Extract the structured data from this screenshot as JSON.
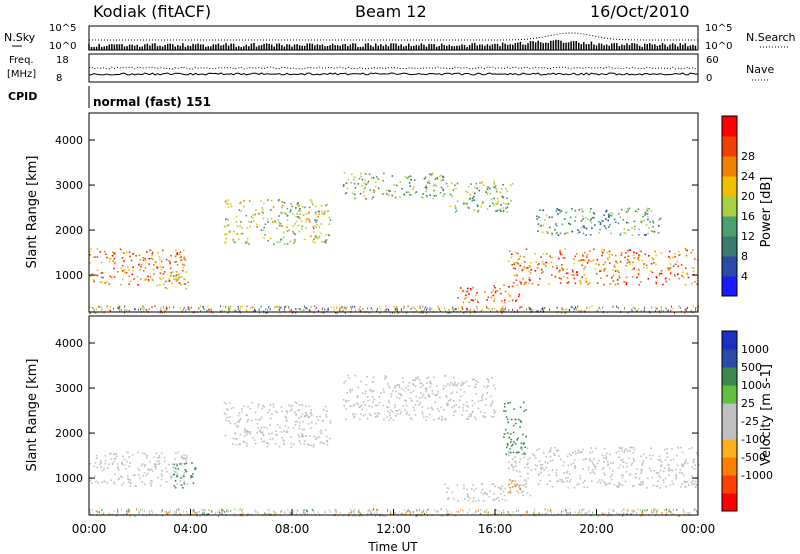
{
  "header": {
    "station": "Kodiak (fitACF)",
    "beam": "Beam 12",
    "date": "16/Oct/2010"
  },
  "noise_panel": {
    "left_label": "N.Sky",
    "right_label": "N.Search",
    "left_ticks": [
      "10^5",
      "10^0"
    ],
    "right_ticks": [
      "10^5",
      "10^0"
    ]
  },
  "freq_panel": {
    "left_label_line1": "Freq.",
    "left_label_line2": "[MHz]",
    "right_label": "Nave",
    "left_ticks": [
      "18",
      "8"
    ],
    "right_ticks": [
      "60",
      "0"
    ]
  },
  "cpid_panel": {
    "label": "CPID",
    "mode": "normal (fast) 151"
  },
  "colors": {
    "power_scale": [
      "#1a1aff",
      "#2a4aa8",
      "#3a7a70",
      "#4aa070",
      "#a8d040",
      "#f0c000",
      "#f08000",
      "#f04000",
      "#ff0000"
    ],
    "velocity_scale": [
      "#ff0000",
      "#ff4000",
      "#ff8000",
      "#ffb020",
      "#c0c0c0",
      "#c0c0c0",
      "#60c040",
      "#3a8a50",
      "#2a4aa8",
      "#1a30c0"
    ],
    "ground_scatter": "#c0c0c0"
  },
  "chart_data": [
    {
      "type": "heatmap",
      "name": "power",
      "ylabel": "Slant Range [km]",
      "yticks": [
        "1000",
        "2000",
        "3000",
        "4000"
      ],
      "ylim": [
        180,
        4600
      ],
      "xlim_hours": [
        0,
        24
      ],
      "colorbar_label": "Power [dB]",
      "colorbar_ticks": [
        "4",
        "8",
        "12",
        "16",
        "20",
        "24",
        "28"
      ],
      "colorbar_range": [
        0,
        32
      ],
      "regions": [
        {
          "t0": 0.0,
          "t1": 3.9,
          "r0": 800,
          "r1": 1600,
          "value": 26
        },
        {
          "t0": 2.5,
          "t1": 3.8,
          "r0": 700,
          "r1": 1100,
          "value": 22
        },
        {
          "t0": 5.3,
          "t1": 9.5,
          "r0": 1700,
          "r1": 2700,
          "value": 18
        },
        {
          "t0": 10.0,
          "t1": 14.0,
          "r0": 2700,
          "r1": 3300,
          "value": 14
        },
        {
          "t0": 14.0,
          "t1": 16.7,
          "r0": 2400,
          "r1": 3100,
          "value": 16
        },
        {
          "t0": 14.5,
          "t1": 17.0,
          "r0": 400,
          "r1": 800,
          "value": 28
        },
        {
          "t0": 16.5,
          "t1": 24.0,
          "r0": 800,
          "r1": 1600,
          "value": 26
        },
        {
          "t0": 17.5,
          "t1": 22.5,
          "r0": 1900,
          "r1": 2500,
          "value": 12
        }
      ]
    },
    {
      "type": "heatmap",
      "name": "velocity",
      "ylabel": "Slant Range [km]",
      "yticks": [
        "1000",
        "2000",
        "3000",
        "4000"
      ],
      "ylim": [
        180,
        4600
      ],
      "xlim_hours": [
        0,
        24
      ],
      "xticks": [
        "00:00",
        "04:00",
        "08:00",
        "12:00",
        "16:00",
        "20:00",
        "00:00"
      ],
      "xlabel": "Time UT",
      "colorbar_label": "Velocity [m s-1]",
      "colorbar_ticks": [
        "1000",
        "500",
        "100",
        "25",
        "-25",
        "-100",
        "-500",
        "-1000"
      ],
      "regions": [
        {
          "t0": 0.0,
          "t1": 3.9,
          "r0": 800,
          "r1": 1600,
          "value": "ground"
        },
        {
          "t0": 3.3,
          "t1": 4.2,
          "r0": 800,
          "r1": 1400,
          "value": 200
        },
        {
          "t0": 5.3,
          "t1": 9.5,
          "r0": 1700,
          "r1": 2700,
          "value": "ground"
        },
        {
          "t0": 10.0,
          "t1": 16.0,
          "r0": 2300,
          "r1": 3300,
          "value": "ground"
        },
        {
          "t0": 16.3,
          "t1": 17.2,
          "r0": 1500,
          "r1": 2700,
          "value": 150
        },
        {
          "t0": 14.0,
          "t1": 17.5,
          "r0": 500,
          "r1": 900,
          "value": "ground"
        },
        {
          "t0": 16.5,
          "t1": 24.0,
          "r0": 800,
          "r1": 1700,
          "value": "ground"
        },
        {
          "t0": 16.4,
          "t1": 17.0,
          "r0": 700,
          "r1": 1000,
          "value": -150
        }
      ]
    }
  ]
}
